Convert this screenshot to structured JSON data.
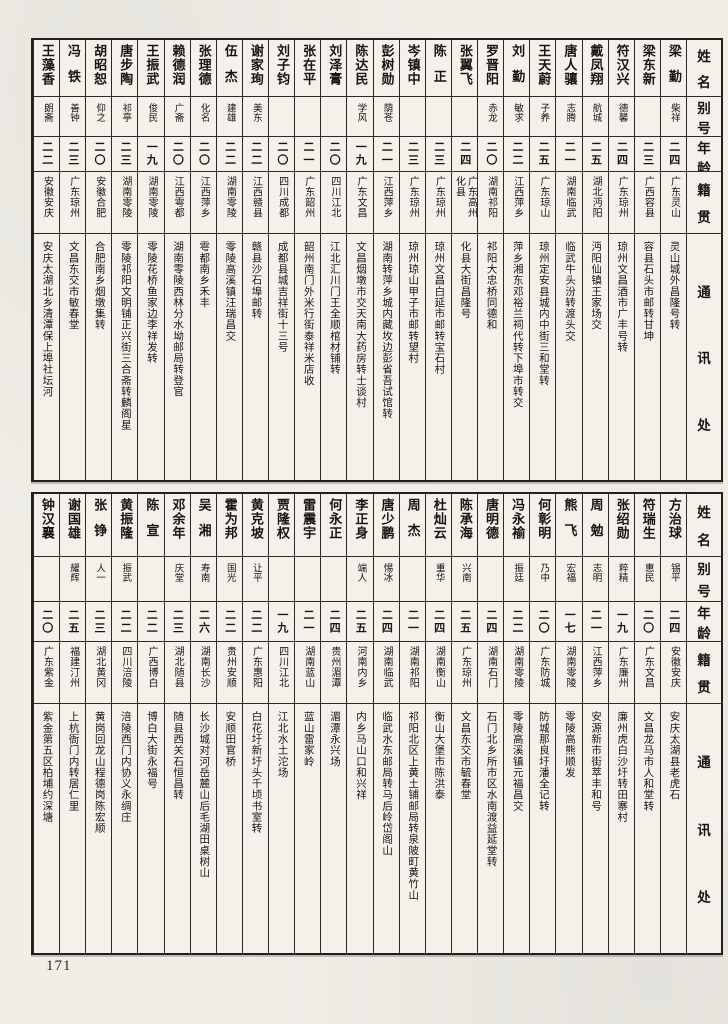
{
  "page_number": "171",
  "header_labels": {
    "name": "姓名",
    "alias": "别号",
    "age": "年龄",
    "native": "籍贯",
    "address": "通讯处"
  },
  "tables": [
    {
      "id": "top",
      "entries": [
        {
          "name": "梁勤",
          "alias": "柴祥",
          "age": "二四",
          "native": "广东灵山",
          "address": "灵山城外昌隆号转"
        },
        {
          "name": "梁东新",
          "alias": "",
          "age": "二三",
          "native": "广西容县",
          "address": "容县石头市邮转甘坤"
        },
        {
          "name": "符汉兴",
          "alias": "德馨",
          "age": "二四",
          "native": "广东琼州",
          "address": "琼州文昌酒市广丰号转"
        },
        {
          "name": "戴凤翔",
          "alias": "航城",
          "age": "二五",
          "native": "湖北沔阳",
          "address": "沔阳仙镇王家场交"
        },
        {
          "name": "唐人骧",
          "alias": "志腾",
          "age": "二一",
          "native": "湖南临武",
          "address": "临武牛头汾转渡头交"
        },
        {
          "name": "王天蔚",
          "alias": "子养",
          "age": "二五",
          "native": "广东琼山",
          "address": "琼州定安县城内中街三和堂转"
        },
        {
          "name": "刘勤",
          "alias": "敏求",
          "age": "二二",
          "native": "江西萍乡",
          "address": "萍乡湘东邓裕兰祠代转下埠市转交"
        },
        {
          "name": "罗晋阳",
          "alias": "赤龙",
          "age": "二〇",
          "native": "湖南祁阳",
          "address": "祁阳大忠桥同德和"
        },
        {
          "name": "张翼飞",
          "alias": "",
          "age": "二四",
          "native": "广东高州\n化县",
          "address": "化县大街昌隆号"
        },
        {
          "name": "陈正",
          "alias": "",
          "age": "二三",
          "native": "广东琼州",
          "address": "琼州文昌白延市邮转宝石村"
        },
        {
          "name": "岑镇中",
          "alias": "",
          "age": "二三",
          "native": "广东琼州",
          "address": "琼州琼山甲子市邮转望村"
        },
        {
          "name": "彭树勋",
          "alias": "荫苍",
          "age": "二一",
          "native": "江西萍乡",
          "address": "湖南转萍乡城内藏坆边彭省吾试馆转"
        },
        {
          "name": "陈达民",
          "alias": "学风",
          "age": "一九",
          "native": "广东文昌",
          "address": "文昌烟墩市交天南大药房转士谈村"
        },
        {
          "name": "刘泽膏",
          "alias": "",
          "age": "二〇",
          "native": "四川江北",
          "address": "江北汇川门王全顺棺材铺转"
        },
        {
          "name": "张在平",
          "alias": "",
          "age": "二一",
          "native": "广东韶州",
          "address": "韶州南门外米行街泰祥米店收"
        },
        {
          "name": "刘子钧",
          "alias": "",
          "age": "二〇",
          "native": "四川成都",
          "address": "成都县城吉祥街十三号"
        },
        {
          "name": "谢家珣",
          "alias": "美东",
          "age": "二二",
          "native": "江西赣县",
          "address": "赣县沙石埠邮转"
        },
        {
          "name": "伍杰",
          "alias": "建雄",
          "age": "二二",
          "native": "湖南零陵",
          "address": "零陵高溪镇汪瑞昌交"
        },
        {
          "name": "张理德",
          "alias": "化名",
          "age": "二〇",
          "native": "江西萍乡",
          "address": "雩都南乡禾丰"
        },
        {
          "name": "赖德润",
          "alias": "广斋",
          "age": "二〇",
          "native": "江西雩都",
          "address": "湖南零陵西林分水坳邮局转登官"
        },
        {
          "name": "王振武",
          "alias": "俊民",
          "age": "一九",
          "native": "湖南零陵",
          "address": "零陵花桥鱼家边李祥发转"
        },
        {
          "name": "唐步陶",
          "alias": "祁亭",
          "age": "二三",
          "native": "湖南零陵",
          "address": "零陵祁阳文明铺正兴街三合斋转麟阁星"
        },
        {
          "name": "胡昭恕",
          "alias": "仰之",
          "age": "二〇",
          "native": "安徽合肥",
          "address": "合肥南乡烟墩集转"
        },
        {
          "name": "冯铁",
          "alias": "善钟",
          "age": "二三",
          "native": "广东琼州",
          "address": "文昌东交市敏春堂"
        },
        {
          "name": "王藻香",
          "alias": "朗斋",
          "age": "二二",
          "native": "安徽安庆",
          "address": "安庆太湖北乡清潭保上埠社坛河"
        }
      ]
    },
    {
      "id": "bottom",
      "entries": [
        {
          "name": "方治球",
          "alias": "锡平",
          "age": "二四",
          "native": "安徽安庆",
          "address": "安庆太湖县老虎石"
        },
        {
          "name": "符瑞生",
          "alias": "惠民",
          "age": "二〇",
          "native": "广东文昌",
          "address": "文昌龙马市人和堂转"
        },
        {
          "name": "张绍勋",
          "alias": "粹精",
          "age": "一九",
          "native": "广东廉州",
          "address": "廉州虎白沙圩转田寨村"
        },
        {
          "name": "周勉",
          "alias": "志明",
          "age": "二一",
          "native": "江西萍乡",
          "address": "安源新市街萃丰和号"
        },
        {
          "name": "熊飞",
          "alias": "宏福",
          "age": "一七",
          "native": "湖南零陵",
          "address": "零陵高熊顺发"
        },
        {
          "name": "何彰明",
          "alias": "乃中",
          "age": "二〇",
          "native": "广东防城",
          "address": "防城那良圩潘全记转"
        },
        {
          "name": "冯永褕",
          "alias": "振廷",
          "age": "二二",
          "native": "湖南零陵",
          "address": "零陵高溪镇元福昌交"
        },
        {
          "name": "唐明德",
          "alias": "",
          "age": "二四",
          "native": "湖南石门",
          "address": "石门北乡所市区水南渡益延堂转"
        },
        {
          "name": "陈承海",
          "alias": "兴南",
          "age": "二五",
          "native": "广东琼州",
          "address": "文昌东交市毓春堂"
        },
        {
          "name": "杜灿云",
          "alias": "重华",
          "age": "二四",
          "native": "湖南衡山",
          "address": "衡山大堡市陈洪泰"
        },
        {
          "name": "周杰",
          "alias": "",
          "age": "二一",
          "native": "湖南祁阳",
          "address": "祁阳北区上黄土铺邮局转泉陂町黄竹山"
        },
        {
          "name": "唐少鹏",
          "alias": "惕冰",
          "age": "二四",
          "native": "湖南临武",
          "address": "临武水东邮局转马后岭岱阁山"
        },
        {
          "name": "李正身",
          "alias": "端人",
          "age": "二五",
          "native": "河南内乡",
          "address": "内乡马山口和兴祥"
        },
        {
          "name": "何永正",
          "alias": "",
          "age": "二四",
          "native": "贵州湄潭",
          "address": "湄潭永兴场"
        },
        {
          "name": "雷震宇",
          "alias": "",
          "age": "二一",
          "native": "湖南蓝山",
          "address": "蓝山雷家岭"
        },
        {
          "name": "贾隆权",
          "alias": "",
          "age": "一九",
          "native": "四川江北",
          "address": "江北水土沱场"
        },
        {
          "name": "黄克坡",
          "alias": "让平",
          "age": "二二",
          "native": "广东惠阳",
          "address": "白花圩新圩头千顷书室转"
        },
        {
          "name": "霍为邦",
          "alias": "国光",
          "age": "二二",
          "native": "贵州安顺",
          "address": "安顺田官桥"
        },
        {
          "name": "吴湘",
          "alias": "寿南",
          "age": "二六",
          "native": "湖南长沙",
          "address": "长沙城对河岳麓山后毛湖田桌树山"
        },
        {
          "name": "邓余年",
          "alias": "庆堂",
          "age": "二三",
          "native": "湖北随县",
          "address": "随县西关石恒昌转"
        },
        {
          "name": "陈宣",
          "alias": "",
          "age": "二二",
          "native": "广西博白",
          "address": "博白大街永福号"
        },
        {
          "name": "黄振隆",
          "alias": "振武",
          "age": "二二",
          "native": "四川涪陵",
          "address": "涪陵西门内协义永绸庄"
        },
        {
          "name": "张铮",
          "alias": "人一",
          "age": "二三",
          "native": "湖北黄冈",
          "address": "黄岗回龙山程德岗陈宏顺"
        },
        {
          "name": "谢国雄",
          "alias": "耀辉",
          "age": "二五",
          "native": "福建汀州",
          "address": "上杭衙门内转居仁里"
        },
        {
          "name": "钟汉襄",
          "alias": "",
          "age": "二〇",
          "native": "广东紫金",
          "address": "紫金第五区柏埔约深塘"
        }
      ]
    }
  ]
}
